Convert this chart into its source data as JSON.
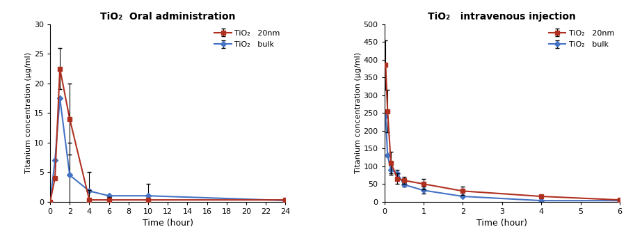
{
  "oral": {
    "title": "TiO₂  Oral administration",
    "xlabel": "Time (hour)",
    "ylabel": "Titanium concentration (μg/ml)",
    "xlim": [
      0,
      24
    ],
    "ylim": [
      0,
      30
    ],
    "xticks": [
      0,
      2,
      4,
      6,
      8,
      10,
      12,
      14,
      16,
      18,
      20,
      22,
      24
    ],
    "yticks": [
      0,
      5,
      10,
      15,
      20,
      25,
      30
    ],
    "nano_x": [
      0,
      0.5,
      1,
      2,
      4,
      6,
      10,
      24
    ],
    "nano_y": [
      0,
      4.0,
      22.5,
      14.0,
      0.3,
      0.3,
      0.3,
      0.3
    ],
    "nano_yerr": [
      0,
      0,
      3.5,
      6.0,
      1.7,
      0.5,
      0,
      0
    ],
    "bulk_x": [
      0,
      0.5,
      1,
      2,
      4,
      6,
      10,
      24
    ],
    "bulk_y": [
      0,
      7.0,
      17.5,
      4.5,
      1.8,
      1.0,
      1.0,
      0.2
    ],
    "bulk_yerr": [
      0,
      0,
      0,
      5.5,
      3.2,
      0,
      2.0,
      0
    ],
    "nano_color": "#b03020",
    "bulk_color": "#4472c4",
    "nano_label": "TiO₂   20nm",
    "bulk_label": "TiO₂   bulk"
  },
  "iv": {
    "title": "TiO₂   intravenous injection",
    "xlabel": "Time (hour)",
    "ylabel": "Titanium concentration (μg/ml)",
    "xlim": [
      0,
      6
    ],
    "ylim": [
      0,
      500
    ],
    "xticks": [
      0,
      1,
      2,
      3,
      4,
      5,
      6
    ],
    "yticks": [
      0,
      50,
      100,
      150,
      200,
      250,
      300,
      350,
      400,
      450,
      500
    ],
    "nano_x": [
      0.033,
      0.083,
      0.167,
      0.333,
      0.5,
      1.0,
      2.0,
      4.0,
      6.0
    ],
    "nano_y": [
      385,
      255,
      110,
      65,
      60,
      50,
      30,
      15,
      5
    ],
    "nano_yerr": [
      70,
      60,
      30,
      15,
      10,
      15,
      12,
      0,
      0
    ],
    "bulk_x": [
      0.033,
      0.083,
      0.167,
      0.333,
      0.5,
      1.0,
      2.0,
      4.0,
      6.0
    ],
    "bulk_y": [
      240,
      130,
      90,
      80,
      48,
      32,
      15,
      3,
      3
    ],
    "bulk_yerr": [
      0,
      0,
      15,
      10,
      5,
      10,
      0,
      0,
      0
    ],
    "nano_color": "#b03020",
    "bulk_color": "#4472c4",
    "nano_label": "TiO₂   20nm",
    "bulk_label": "TiO₂   bulk"
  },
  "fig_width": 9.0,
  "fig_height": 3.49,
  "dpi": 100
}
